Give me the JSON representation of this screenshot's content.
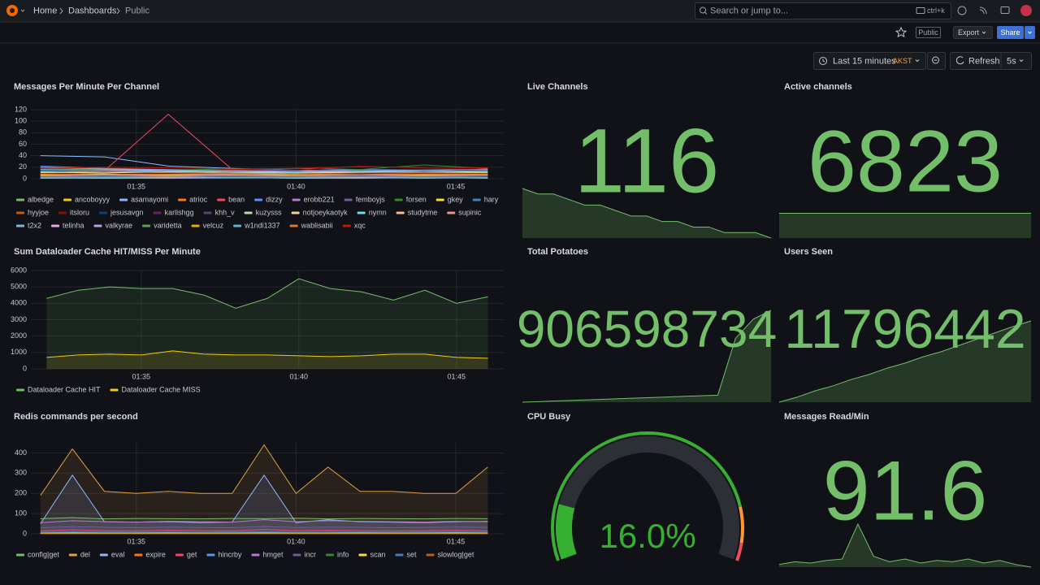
{
  "header": {
    "breadcrumbs": [
      "Home",
      "Dashboards",
      "Public"
    ],
    "search_placeholder": "Search or jump to...",
    "search_shortcut": "ctrl+k"
  },
  "toolbar": {
    "badge": "Public",
    "export": "Export",
    "share": "Share"
  },
  "time_controls": {
    "range": "Last 15 minutes",
    "timezone": "AKST",
    "refresh": "Refresh",
    "interval": "5s"
  },
  "chart_data": [
    {
      "type": "line",
      "title": "Messages Per Minute Per Channel",
      "legend": "bottom",
      "fill": false,
      "x": [
        92,
        94,
        96,
        98,
        100,
        102,
        104,
        106
      ],
      "xlim": [
        91.7,
        106.5
      ],
      "xticks": [
        {
          "value": 95,
          "label": "01:35"
        },
        {
          "value": 100,
          "label": "01:40"
        },
        {
          "value": 105,
          "label": "01:45"
        }
      ],
      "ylim": [
        0,
        120
      ],
      "yticks": [
        0,
        20,
        40,
        60,
        80,
        100,
        120
      ],
      "series": [
        {
          "name": "albedge",
          "color": "#73bf69",
          "values": [
            5,
            6,
            5,
            7,
            6,
            5,
            8,
            6
          ]
        },
        {
          "name": "ancoboyyy",
          "color": "#f2cc0c",
          "values": [
            10,
            12,
            11,
            9,
            10,
            12,
            11,
            10
          ]
        },
        {
          "name": "asamayomi",
          "color": "#8ab8ff",
          "values": [
            40,
            38,
            22,
            18,
            15,
            14,
            12,
            13
          ]
        },
        {
          "name": "atrioc",
          "color": "#ff780a",
          "values": [
            3,
            4,
            3,
            2,
            3,
            4,
            3,
            3
          ]
        },
        {
          "name": "bean",
          "color": "#f2495c",
          "values": [
            12,
            14,
            112,
            16,
            14,
            13,
            15,
            12
          ]
        },
        {
          "name": "dizzy",
          "color": "#5794f2",
          "values": [
            22,
            18,
            16,
            15,
            18,
            16,
            15,
            17
          ]
        },
        {
          "name": "erobb221",
          "color": "#b877d9",
          "values": [
            8,
            9,
            7,
            8,
            10,
            9,
            8,
            9
          ]
        },
        {
          "name": "femboyjs",
          "color": "#705da0",
          "values": [
            2,
            3,
            2,
            2,
            3,
            2,
            3,
            2
          ]
        },
        {
          "name": "forsen",
          "color": "#37872d",
          "values": [
            18,
            16,
            15,
            17,
            14,
            16,
            24,
            18
          ]
        },
        {
          "name": "gkey",
          "color": "#fade2a",
          "values": [
            6,
            5,
            7,
            6,
            5,
            6,
            7,
            6
          ]
        },
        {
          "name": "hary",
          "color": "#447ebc",
          "values": [
            14,
            13,
            12,
            14,
            13,
            12,
            14,
            13
          ]
        },
        {
          "name": "hyyjoe",
          "color": "#c15c17",
          "values": [
            1,
            2,
            1,
            1,
            2,
            1,
            2,
            1
          ]
        },
        {
          "name": "itsloru",
          "color": "#890f02",
          "values": [
            15,
            14,
            13,
            16,
            15,
            22,
            18,
            16
          ]
        },
        {
          "name": "jesusavgn",
          "color": "#0a437c",
          "values": [
            4,
            5,
            4,
            5,
            4,
            5,
            4,
            5
          ]
        },
        {
          "name": "karlishgg",
          "color": "#6d1f62",
          "values": [
            9,
            8,
            10,
            9,
            8,
            9,
            10,
            9
          ]
        },
        {
          "name": "khh_v",
          "color": "#584477",
          "values": [
            3,
            2,
            3,
            4,
            3,
            2,
            3,
            3
          ]
        },
        {
          "name": "kuzysss",
          "color": "#b7dbab",
          "values": [
            7,
            8,
            7,
            6,
            8,
            7,
            8,
            7
          ]
        },
        {
          "name": "notjoeykaotyk",
          "color": "#f4d598",
          "values": [
            11,
            10,
            12,
            11,
            10,
            11,
            12,
            11
          ]
        },
        {
          "name": "nymn",
          "color": "#70dbed",
          "values": [
            16,
            15,
            14,
            12,
            11,
            13,
            12,
            14
          ]
        },
        {
          "name": "studytme",
          "color": "#f9ba8f",
          "values": [
            2,
            1,
            2,
            2,
            1,
            2,
            1,
            2
          ]
        },
        {
          "name": "supinic",
          "color": "#f29191",
          "values": [
            5,
            6,
            5,
            6,
            5,
            6,
            5,
            6
          ]
        },
        {
          "name": "t2x2",
          "color": "#82b5d8",
          "values": [
            13,
            12,
            14,
            12,
            13,
            14,
            12,
            13
          ]
        },
        {
          "name": "telinha",
          "color": "#e5a8e2",
          "values": [
            1,
            1,
            1,
            2,
            1,
            1,
            2,
            1
          ]
        },
        {
          "name": "valkyrae",
          "color": "#aea2e0",
          "values": [
            20,
            17,
            15,
            14,
            13,
            14,
            15,
            16
          ]
        },
        {
          "name": "varidetta",
          "color": "#629e51",
          "values": [
            4,
            3,
            4,
            3,
            4,
            3,
            4,
            3
          ]
        },
        {
          "name": "velcuz",
          "color": "#e5ac0e",
          "values": [
            6,
            7,
            6,
            7,
            6,
            7,
            6,
            7
          ]
        },
        {
          "name": "w1ndi1337",
          "color": "#64b0c8",
          "values": [
            2,
            2,
            3,
            2,
            2,
            3,
            2,
            2
          ]
        },
        {
          "name": "wablisabii",
          "color": "#e0752d",
          "values": [
            8,
            7,
            8,
            9,
            8,
            7,
            8,
            8
          ]
        },
        {
          "name": "xqc",
          "color": "#bf1b00",
          "values": [
            18,
            20,
            19,
            17,
            18,
            21,
            20,
            19
          ]
        }
      ]
    },
    {
      "type": "stat",
      "title": "Live Channels",
      "value": 116,
      "color": "#73bf69",
      "sparkline": [
        124,
        123,
        123,
        122,
        121,
        121,
        120,
        119,
        119,
        118,
        118,
        117,
        117,
        116,
        116,
        116,
        115
      ]
    },
    {
      "type": "stat",
      "title": "Active channels",
      "value": 6823,
      "color": "#73bf69",
      "sparkline": [
        6823,
        6823,
        6823,
        6823,
        6823,
        6823,
        6823,
        6823,
        6823,
        6823
      ]
    },
    {
      "type": "line",
      "title": "Sum Dataloader Cache HIT/MISS Per Minute",
      "legend": "bottom",
      "fill": true,
      "x": [
        92,
        93,
        94,
        95,
        96,
        97,
        98,
        99,
        100,
        101,
        102,
        103,
        104,
        105,
        106
      ],
      "xlim": [
        91.5,
        106.5
      ],
      "xticks": [
        {
          "value": 95,
          "label": "01:35"
        },
        {
          "value": 100,
          "label": "01:40"
        },
        {
          "value": 105,
          "label": "01:45"
        }
      ],
      "ylim": [
        0,
        6000
      ],
      "yticks": [
        0,
        1000,
        2000,
        3000,
        4000,
        5000,
        6000
      ],
      "series": [
        {
          "name": "Dataloader Cache HIT",
          "color": "#73bf69",
          "values": [
            4300,
            4800,
            5000,
            4900,
            4900,
            4500,
            3700,
            4300,
            5500,
            4900,
            4700,
            4200,
            4800,
            4000,
            4400
          ]
        },
        {
          "name": "Dataloader Cache MISS",
          "color": "#f2cc0c",
          "values": [
            700,
            850,
            900,
            850,
            1100,
            900,
            850,
            850,
            800,
            750,
            800,
            900,
            900,
            700,
            650
          ]
        }
      ]
    },
    {
      "type": "stat",
      "title": "Total Potatoes",
      "value": 906598734,
      "color": "#73bf69",
      "sparkline": [
        906570000,
        906570200,
        906570400,
        906570600,
        906570800,
        906571000,
        906571200,
        906571400,
        906571600,
        906571800,
        906572000,
        906572200,
        906590000,
        906596000,
        906598734
      ]
    },
    {
      "type": "stat",
      "title": "Users Seen",
      "value": 11796442,
      "color": "#73bf69",
      "sparkline": [
        11790000,
        11790400,
        11790900,
        11791300,
        11791800,
        11792200,
        11792700,
        11793100,
        11793600,
        11794000,
        11794500,
        11795000,
        11795500,
        11796000,
        11796442
      ]
    },
    {
      "type": "line",
      "title": "Redis commands per second",
      "legend": "bottom",
      "fill": true,
      "x": [
        92,
        93,
        94,
        95,
        96,
        97,
        98,
        99,
        100,
        101,
        102,
        103,
        104,
        105,
        106
      ],
      "xlim": [
        91.7,
        106.5
      ],
      "xticks": [
        {
          "value": 95,
          "label": "01:35"
        },
        {
          "value": 100,
          "label": "01:40"
        },
        {
          "value": 105,
          "label": "01:45"
        }
      ],
      "ylim": [
        0,
        450
      ],
      "yticks": [
        0,
        100,
        200,
        300,
        400
      ],
      "series": [
        {
          "name": "config|get",
          "color": "#73bf69",
          "values": [
            75,
            80,
            74,
            76,
            75,
            74,
            76,
            75,
            77,
            74,
            76,
            75,
            74,
            76,
            75
          ]
        },
        {
          "name": "del",
          "color": "#e0a040",
          "values": [
            190,
            420,
            210,
            200,
            210,
            200,
            200,
            440,
            200,
            330,
            210,
            210,
            200,
            200,
            330
          ]
        },
        {
          "name": "eval",
          "color": "#8ab8ff",
          "values": [
            50,
            290,
            60,
            58,
            60,
            55,
            58,
            290,
            55,
            70,
            60,
            58,
            55,
            60,
            62
          ]
        },
        {
          "name": "expire",
          "color": "#ff780a",
          "values": [
            2,
            3,
            2,
            2,
            3,
            2,
            2,
            3,
            2,
            2,
            3,
            2,
            2,
            3,
            2
          ]
        },
        {
          "name": "get",
          "color": "#f2495c",
          "values": [
            15,
            20,
            16,
            15,
            18,
            16,
            15,
            22,
            16,
            18,
            16,
            15,
            16,
            18,
            15
          ]
        },
        {
          "name": "hincrby",
          "color": "#5794f2",
          "values": [
            5,
            6,
            5,
            5,
            6,
            5,
            5,
            6,
            5,
            5,
            6,
            5,
            5,
            6,
            5
          ]
        },
        {
          "name": "hmget",
          "color": "#b877d9",
          "values": [
            55,
            65,
            60,
            58,
            62,
            60,
            58,
            70,
            60,
            65,
            62,
            60,
            58,
            62,
            60
          ]
        },
        {
          "name": "incr",
          "color": "#705da0",
          "values": [
            30,
            35,
            32,
            30,
            33,
            31,
            30,
            36,
            31,
            33,
            32,
            30,
            31,
            33,
            32
          ]
        },
        {
          "name": "info",
          "color": "#37872d",
          "values": [
            1,
            1,
            1,
            1,
            1,
            1,
            1,
            1,
            1,
            1,
            1,
            1,
            1,
            1,
            1
          ]
        },
        {
          "name": "scan",
          "color": "#fade2a",
          "values": [
            3,
            4,
            3,
            3,
            4,
            3,
            3,
            4,
            3,
            3,
            4,
            3,
            3,
            4,
            3
          ]
        },
        {
          "name": "set",
          "color": "#447ebc",
          "values": [
            8,
            10,
            9,
            8,
            9,
            8,
            9,
            11,
            8,
            9,
            9,
            8,
            9,
            10,
            8
          ]
        },
        {
          "name": "slowlog|get",
          "color": "#c15c17",
          "values": [
            0,
            0,
            0,
            0,
            0,
            0,
            0,
            0,
            0,
            0,
            0,
            0,
            0,
            0,
            0
          ]
        }
      ]
    },
    {
      "type": "gauge",
      "title": "CPU Busy",
      "value": 16,
      "value_label": "16.0%",
      "gaugelim": [
        0,
        100
      ],
      "color": "#37b032",
      "thresholds": [
        {
          "value": 0,
          "color": "#37b032"
        },
        {
          "value": 85,
          "color": "#ff9830"
        },
        {
          "value": 95,
          "color": "#f2495c"
        }
      ]
    },
    {
      "type": "stat",
      "title": "Messages Read/Min",
      "value": 91.6,
      "color": "#73bf69",
      "sparkline": [
        82,
        84,
        83,
        85,
        86,
        112,
        88,
        84,
        86,
        83,
        85,
        84,
        86,
        83,
        85,
        82,
        80
      ]
    }
  ]
}
